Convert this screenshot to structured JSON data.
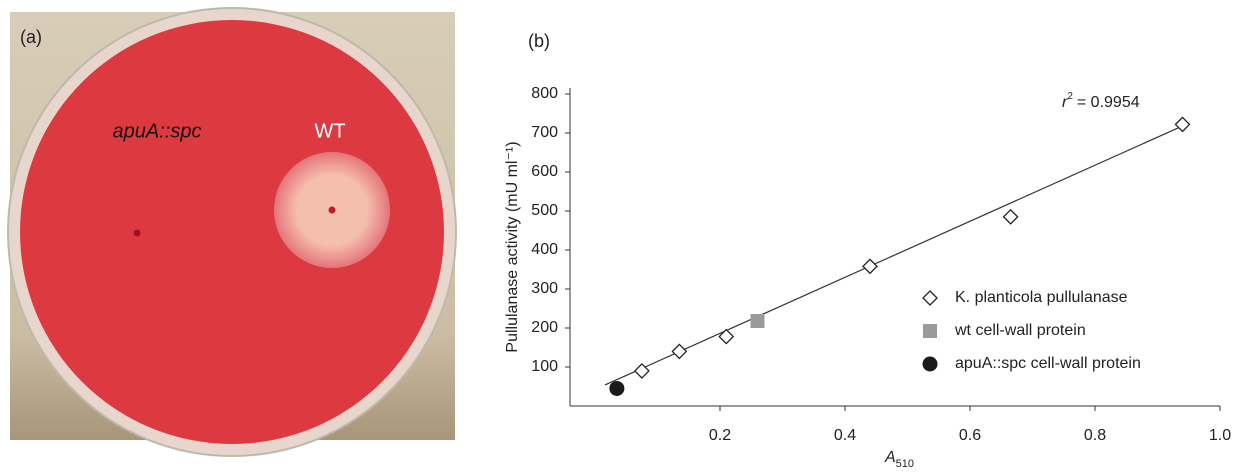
{
  "photo": {
    "panel_label": "(a)",
    "labels": [
      "apuA::spc",
      "WT"
    ]
  },
  "chart_data": {
    "type": "scatter",
    "panel_label": "(b)",
    "y_label": "Pullulanase activity (mU ml⁻¹)",
    "x_label": "A",
    "x_label_sub": "510",
    "annotation": {
      "symbol": "r",
      "sup": "2",
      "text": "= 0.9954"
    },
    "xlim": [
      -0.04,
      1.0
    ],
    "ylim": [
      0,
      800
    ],
    "xticks": [
      0.2,
      0.4,
      0.6,
      0.8,
      {
        "value": 1,
        "label": "1.0"
      }
    ],
    "yticks": [
      100,
      200,
      300,
      400,
      500,
      600,
      700,
      800
    ],
    "series": [
      {
        "name": "K. planticola pullulanase",
        "marker": "diamond",
        "color": "#ffffff",
        "x": [
          0.075,
          0.135,
          0.21,
          0.44,
          0.665,
          0.94
        ],
        "values": [
          90,
          140,
          178,
          358,
          485,
          722
        ]
      },
      {
        "name": "wt cell-wall protein",
        "marker": "square",
        "color": "#9a9a9a",
        "x": [
          0.26
        ],
        "values": [
          218
        ]
      },
      {
        "name": "apuA::spc cell-wall protein",
        "marker": "circle",
        "color": "#1a1a1a",
        "x": [
          0.035
        ],
        "values": [
          45
        ]
      }
    ],
    "fit_line": {
      "x": [
        0.016,
        0.94
      ],
      "y": [
        54,
        718
      ]
    }
  }
}
